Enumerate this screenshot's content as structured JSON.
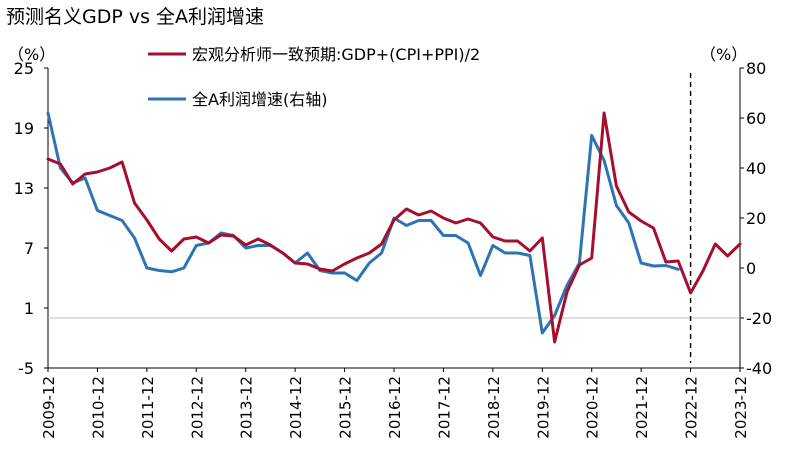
{
  "chart_data": {
    "type": "line",
    "title": "预测名义GDP vs 全A利润增速",
    "left_axis_unit": "（%）",
    "right_axis_unit": "（%）",
    "left_axis": {
      "range": [
        -5,
        25
      ],
      "ticks": [
        "25",
        "19",
        "13",
        "7",
        "1",
        "-5"
      ]
    },
    "right_axis": {
      "range": [
        -40,
        80
      ],
      "ticks": [
        "80",
        "60",
        "40",
        "20",
        "0",
        "-20",
        "-40"
      ]
    },
    "x_ticks": [
      "2009-12",
      "2010-12",
      "2011-12",
      "2012-12",
      "2013-12",
      "2014-12",
      "2015-12",
      "2016-12",
      "2017-12",
      "2018-12",
      "2019-12",
      "2020-12",
      "2021-12",
      "2022-12",
      "2023-12"
    ],
    "forecast_divider_label_position": "2022-12",
    "legend_position": "top-center",
    "series": [
      {
        "name": "宏观分析师一致预期:GDP+(CPI+PPI)/2",
        "axis": "left",
        "color": "#A50F2D",
        "values": [
          [
            2009.92,
            15.9
          ],
          [
            2010.17,
            15.4
          ],
          [
            2010.42,
            13.4
          ],
          [
            2010.67,
            14.4
          ],
          [
            2010.92,
            14.6
          ],
          [
            2011.17,
            15.0
          ],
          [
            2011.42,
            15.6
          ],
          [
            2011.67,
            11.5
          ],
          [
            2011.92,
            9.8
          ],
          [
            2012.17,
            7.9
          ],
          [
            2012.42,
            6.7
          ],
          [
            2012.67,
            7.9
          ],
          [
            2012.92,
            8.1
          ],
          [
            2013.17,
            7.5
          ],
          [
            2013.42,
            8.3
          ],
          [
            2013.67,
            8.2
          ],
          [
            2013.92,
            7.3
          ],
          [
            2014.17,
            7.9
          ],
          [
            2014.42,
            7.3
          ],
          [
            2014.67,
            6.5
          ],
          [
            2014.92,
            5.5
          ],
          [
            2015.17,
            5.4
          ],
          [
            2015.42,
            4.9
          ],
          [
            2015.67,
            4.7
          ],
          [
            2015.92,
            5.4
          ],
          [
            2016.17,
            6.0
          ],
          [
            2016.42,
            6.5
          ],
          [
            2016.67,
            7.4
          ],
          [
            2016.92,
            9.8
          ],
          [
            2017.17,
            10.9
          ],
          [
            2017.42,
            10.3
          ],
          [
            2017.67,
            10.7
          ],
          [
            2017.92,
            10.0
          ],
          [
            2018.17,
            9.5
          ],
          [
            2018.42,
            9.9
          ],
          [
            2018.67,
            9.5
          ],
          [
            2018.92,
            8.1
          ],
          [
            2019.17,
            7.7
          ],
          [
            2019.42,
            7.7
          ],
          [
            2019.67,
            6.7
          ],
          [
            2019.92,
            8.0
          ],
          [
            2020.17,
            -2.4
          ],
          [
            2020.42,
            2.6
          ],
          [
            2020.67,
            5.3
          ],
          [
            2020.92,
            6.0
          ],
          [
            2021.17,
            20.5
          ],
          [
            2021.42,
            13.2
          ],
          [
            2021.67,
            10.6
          ],
          [
            2021.92,
            9.7
          ],
          [
            2022.17,
            9.0
          ],
          [
            2022.42,
            5.6
          ],
          [
            2022.67,
            5.7
          ],
          [
            2022.92,
            2.5
          ],
          [
            2023.17,
            4.7
          ],
          [
            2023.42,
            7.4
          ],
          [
            2023.67,
            6.2
          ],
          [
            2023.92,
            7.4
          ]
        ]
      },
      {
        "name": "全A利润增速(右轴)",
        "axis": "right",
        "color": "#2E74B5",
        "values": [
          [
            2009.92,
            62
          ],
          [
            2010.17,
            40
          ],
          [
            2010.42,
            34
          ],
          [
            2010.67,
            36
          ],
          [
            2010.92,
            23
          ],
          [
            2011.17,
            21
          ],
          [
            2011.42,
            19
          ],
          [
            2011.67,
            12
          ],
          [
            2011.92,
            0
          ],
          [
            2012.17,
            -1
          ],
          [
            2012.42,
            -1.5
          ],
          [
            2012.67,
            0
          ],
          [
            2012.92,
            9
          ],
          [
            2013.17,
            10
          ],
          [
            2013.42,
            14
          ],
          [
            2013.67,
            13
          ],
          [
            2013.92,
            8
          ],
          [
            2014.17,
            9
          ],
          [
            2014.42,
            9
          ],
          [
            2014.67,
            6
          ],
          [
            2014.92,
            2
          ],
          [
            2015.17,
            6
          ],
          [
            2015.42,
            -1
          ],
          [
            2015.67,
            -2
          ],
          [
            2015.92,
            -2
          ],
          [
            2016.17,
            -5
          ],
          [
            2016.42,
            2
          ],
          [
            2016.67,
            6
          ],
          [
            2016.92,
            20
          ],
          [
            2017.17,
            17
          ],
          [
            2017.42,
            19
          ],
          [
            2017.67,
            19
          ],
          [
            2017.92,
            13
          ],
          [
            2018.17,
            13
          ],
          [
            2018.42,
            10
          ],
          [
            2018.67,
            -3
          ],
          [
            2018.92,
            9
          ],
          [
            2019.17,
            6
          ],
          [
            2019.42,
            6
          ],
          [
            2019.67,
            5
          ],
          [
            2019.92,
            -26
          ],
          [
            2020.17,
            -19
          ],
          [
            2020.42,
            -7
          ],
          [
            2020.67,
            2
          ],
          [
            2020.92,
            53
          ],
          [
            2021.17,
            43
          ],
          [
            2021.42,
            25
          ],
          [
            2021.67,
            18
          ],
          [
            2021.92,
            2
          ],
          [
            2022.17,
            0.8
          ],
          [
            2022.42,
            1
          ],
          [
            2022.67,
            -0.5
          ]
        ]
      }
    ]
  }
}
